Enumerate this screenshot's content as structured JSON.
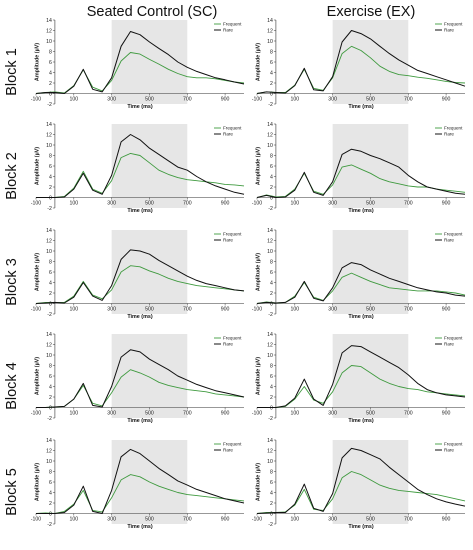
{
  "columns": [
    "Seated Control (SC)",
    "Exercise (EX)"
  ],
  "rows": [
    "Block 1",
    "Block 2",
    "Block 3",
    "Block 4",
    "Block 5"
  ],
  "colors": {
    "frequent": "#3f9a3f",
    "rare": "#111111",
    "shade": "#e6e6e6"
  },
  "chart_data": {
    "type": "line",
    "panels": 10,
    "xlabel": "Time (ms)",
    "ylabel": "Amplitude (µV)",
    "xlim": [
      -100,
      1000
    ],
    "ylim": [
      -2,
      14
    ],
    "xticks": [
      -100,
      100,
      300,
      500,
      700,
      900
    ],
    "yticks": [
      -2,
      0,
      2,
      4,
      6,
      8,
      10,
      12,
      14
    ],
    "shaded_window": [
      300,
      700
    ],
    "legend": [
      "Frequent",
      "Rare"
    ],
    "legend_position": "top-right",
    "x": [
      -100,
      -50,
      0,
      50,
      100,
      150,
      200,
      250,
      300,
      350,
      400,
      450,
      500,
      550,
      600,
      650,
      700,
      750,
      800,
      850,
      900,
      950,
      1000
    ],
    "series": [
      {
        "column": "Seated Control (SC)",
        "row": "Block 1",
        "frequent": [
          0,
          0.2,
          0.3,
          0.1,
          1.5,
          4.5,
          1.2,
          0.5,
          2.5,
          6.2,
          7.8,
          7.5,
          6.5,
          5.6,
          4.6,
          3.8,
          3.2,
          3.0,
          3.0,
          2.8,
          2.5,
          2.2,
          2.0
        ],
        "rare": [
          0,
          0.2,
          0.2,
          0.0,
          1.4,
          4.6,
          0.8,
          0.3,
          3.0,
          9.0,
          11.8,
          11.2,
          9.8,
          8.6,
          7.4,
          6.0,
          5.0,
          4.2,
          3.6,
          3.0,
          2.6,
          2.2,
          1.8
        ]
      },
      {
        "column": "Exercise (EX)",
        "row": "Block 1",
        "frequent": [
          0,
          0.3,
          0.2,
          0.2,
          1.6,
          4.6,
          1.0,
          0.6,
          3.0,
          7.6,
          9.0,
          8.2,
          6.8,
          5.2,
          4.2,
          3.6,
          3.4,
          3.1,
          2.9,
          2.6,
          2.3,
          2.1,
          2.0
        ],
        "rare": [
          0,
          0.3,
          0.2,
          0.1,
          1.5,
          4.8,
          0.7,
          0.5,
          3.2,
          9.8,
          12.0,
          11.4,
          10.4,
          9.0,
          7.6,
          6.4,
          5.4,
          4.4,
          3.8,
          3.2,
          2.6,
          2.0,
          1.4
        ]
      },
      {
        "column": "Seated Control (SC)",
        "row": "Block 2",
        "frequent": [
          0,
          0.0,
          0.0,
          0.2,
          1.8,
          5.0,
          1.6,
          0.8,
          3.2,
          7.6,
          8.4,
          8.0,
          6.6,
          5.2,
          4.4,
          3.8,
          3.4,
          3.2,
          3.0,
          2.8,
          2.5,
          2.4,
          2.2
        ],
        "rare": [
          0,
          0.0,
          0.0,
          0.1,
          1.6,
          4.6,
          1.4,
          0.6,
          4.2,
          10.6,
          12.0,
          11.0,
          9.4,
          8.2,
          7.0,
          5.8,
          5.2,
          4.0,
          3.0,
          2.2,
          1.6,
          1.0,
          0.6
        ]
      },
      {
        "column": "Exercise (EX)",
        "row": "Block 2",
        "frequent": [
          0,
          0.5,
          0.1,
          0.2,
          1.6,
          4.6,
          1.2,
          0.6,
          2.4,
          5.8,
          6.2,
          5.4,
          4.6,
          3.6,
          3.0,
          2.6,
          2.2,
          2.0,
          2.0,
          1.6,
          1.4,
          1.2,
          1.0
        ],
        "rare": [
          0,
          0.4,
          0.0,
          0.1,
          1.4,
          4.8,
          1.0,
          0.4,
          3.0,
          8.2,
          9.2,
          8.8,
          8.0,
          7.4,
          6.6,
          5.8,
          4.2,
          3.0,
          2.0,
          1.6,
          1.2,
          0.8,
          0.6
        ]
      },
      {
        "column": "Seated Control (SC)",
        "row": "Block 3",
        "frequent": [
          0,
          0.2,
          0.2,
          0.2,
          1.4,
          4.2,
          1.6,
          0.9,
          2.6,
          6.0,
          7.2,
          7.0,
          6.2,
          5.6,
          4.8,
          4.2,
          3.8,
          3.4,
          3.2,
          3.0,
          2.8,
          2.6,
          2.4
        ],
        "rare": [
          0,
          0.1,
          0.2,
          0.1,
          1.2,
          4.0,
          1.4,
          0.6,
          3.4,
          8.4,
          10.2,
          10.0,
          9.4,
          8.2,
          7.2,
          6.2,
          5.2,
          4.4,
          3.8,
          3.4,
          3.0,
          2.6,
          2.4
        ]
      },
      {
        "column": "Exercise (EX)",
        "row": "Block 3",
        "frequent": [
          0,
          0.3,
          0.1,
          0.2,
          1.4,
          4.0,
          1.2,
          0.6,
          2.4,
          5.0,
          5.8,
          5.0,
          4.2,
          3.6,
          3.0,
          2.8,
          2.6,
          2.4,
          2.4,
          2.4,
          2.2,
          2.0,
          1.6
        ],
        "rare": [
          0,
          0.2,
          0.1,
          0.2,
          1.2,
          4.2,
          1.0,
          0.5,
          3.0,
          6.8,
          7.8,
          7.4,
          6.4,
          5.6,
          4.8,
          4.2,
          3.6,
          3.0,
          2.6,
          2.2,
          2.0,
          1.6,
          1.4
        ]
      },
      {
        "column": "Seated Control (SC)",
        "row": "Block 4",
        "frequent": [
          0,
          0.0,
          0.1,
          0.2,
          1.6,
          4.2,
          0.8,
          0.3,
          2.8,
          5.8,
          7.2,
          6.6,
          5.8,
          4.8,
          4.2,
          3.8,
          3.4,
          3.2,
          3.0,
          2.6,
          2.4,
          2.2,
          2.0
        ],
        "rare": [
          0,
          0.0,
          0.1,
          0.2,
          1.6,
          4.6,
          0.4,
          0.1,
          4.0,
          9.6,
          11.0,
          10.6,
          9.2,
          8.2,
          7.2,
          6.0,
          5.2,
          4.4,
          3.8,
          3.2,
          2.8,
          2.4,
          2.0
        ]
      },
      {
        "column": "Exercise (EX)",
        "row": "Block 4",
        "frequent": [
          0,
          0.0,
          0.0,
          0.2,
          1.6,
          4.0,
          1.4,
          0.8,
          3.0,
          6.6,
          8.0,
          7.8,
          6.6,
          5.4,
          4.6,
          4.0,
          3.6,
          3.4,
          3.0,
          2.8,
          2.6,
          2.4,
          2.2
        ],
        "rare": [
          0,
          0.0,
          0.0,
          0.3,
          1.8,
          5.4,
          1.6,
          0.4,
          4.4,
          10.4,
          11.8,
          11.6,
          10.6,
          9.6,
          8.6,
          7.6,
          6.2,
          4.6,
          3.4,
          2.8,
          2.4,
          2.2,
          2.0
        ]
      },
      {
        "column": "Seated Control (SC)",
        "row": "Block 5",
        "frequent": [
          0,
          0.1,
          0.0,
          0.4,
          1.8,
          4.4,
          0.6,
          0.3,
          3.0,
          6.4,
          7.4,
          7.0,
          6.0,
          5.2,
          4.6,
          4.0,
          3.6,
          3.4,
          3.2,
          3.0,
          2.8,
          2.6,
          2.4
        ],
        "rare": [
          0,
          0.0,
          0.0,
          0.2,
          1.6,
          5.2,
          0.4,
          0.0,
          4.4,
          10.8,
          12.2,
          11.4,
          10.0,
          8.6,
          7.4,
          6.2,
          5.4,
          4.6,
          4.0,
          3.4,
          2.8,
          2.4,
          2.0
        ]
      },
      {
        "column": "Exercise (EX)",
        "row": "Block 5",
        "frequent": [
          0,
          0.2,
          0.2,
          0.3,
          1.6,
          4.6,
          0.8,
          0.6,
          2.8,
          6.8,
          8.0,
          7.4,
          6.4,
          5.4,
          4.8,
          4.4,
          4.2,
          4.0,
          3.8,
          3.6,
          3.2,
          2.8,
          2.4
        ],
        "rare": [
          0,
          0.1,
          0.2,
          0.2,
          1.8,
          5.6,
          1.0,
          0.4,
          3.8,
          10.6,
          12.4,
          12.0,
          11.2,
          10.4,
          8.8,
          7.4,
          6.0,
          4.6,
          3.6,
          2.8,
          2.2,
          1.8,
          1.4
        ]
      }
    ]
  }
}
